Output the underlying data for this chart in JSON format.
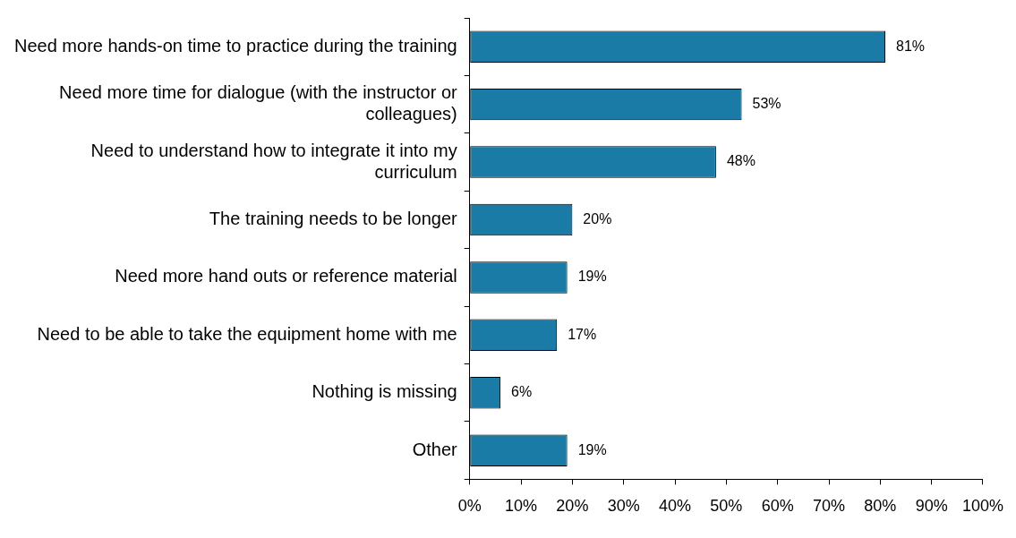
{
  "chart_data": {
    "type": "bar",
    "orientation": "horizontal",
    "categories": [
      "Need more hands-on time to practice during the training",
      "Need more time for dialogue (with the instructor or colleagues)",
      "Need to understand how to integrate it into my curriculum",
      "The training needs to be longer",
      "Need more hand outs or reference material",
      "Need to be able to take the equipment home with me",
      "Nothing is missing",
      "Other"
    ],
    "values": [
      81,
      53,
      48,
      20,
      19,
      17,
      6,
      19
    ],
    "value_labels": [
      "81%",
      "53%",
      "48%",
      "20%",
      "19%",
      "17%",
      "6%",
      "19%"
    ],
    "color": "#1a7ca6",
    "xlim": [
      0,
      100
    ],
    "xticks": [
      {
        "value": 0,
        "label": "0%"
      },
      {
        "value": 10,
        "label": "10%"
      },
      {
        "value": 20,
        "label": "20%"
      },
      {
        "value": 30,
        "label": "30%"
      },
      {
        "value": 40,
        "label": "40%"
      },
      {
        "value": 50,
        "label": "50%"
      },
      {
        "value": 60,
        "label": "60%"
      },
      {
        "value": 70,
        "label": "70%"
      },
      {
        "value": 80,
        "label": "80%"
      },
      {
        "value": 90,
        "label": "90%"
      },
      {
        "value": 100,
        "label": "100%"
      }
    ],
    "grid": false,
    "legend": false
  }
}
